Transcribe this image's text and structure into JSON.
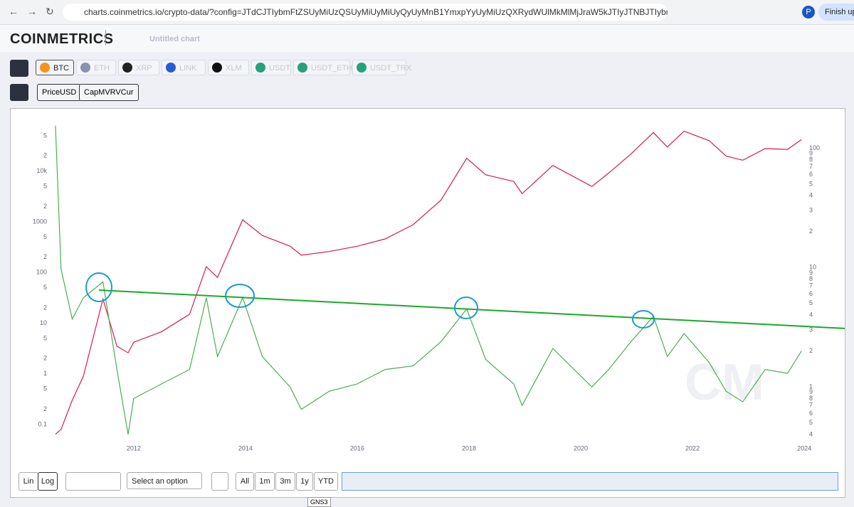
{
  "browser": {
    "url": "charts.coinmetrics.io/crypto-data/?config=JTdCJTIybmFtZSUyMiUzQSUyMiUyMiUyQyUyMnB1YmxpYyUyMiUzQXRydWUlMkMlMjJraW5kJTIyJTNBJTIybmMlMjIlMkMlMjJjb250Z...",
    "profile": "P",
    "button": "Finish upd"
  },
  "header": {
    "logo": "COINMETRICS",
    "chart_title": "Untitled chart"
  },
  "assets": [
    "BTC",
    "ETH",
    "XRP",
    "LINK",
    "XLM",
    "USDT",
    "USDT_ETH",
    "USDT_TRX"
  ],
  "controls": {
    "scales": [
      "Lin",
      "Log"
    ],
    "select": "Select an option",
    "ranges": [
      "All",
      "1m",
      "3m",
      "1y",
      "YTD"
    ],
    "tooltip": "GNS3"
  },
  "watermark": "CM",
  "chart_data": {
    "type": "line",
    "log_scale": true,
    "x": [
      2010.6,
      2010.7,
      2010.9,
      2011.1,
      2011.45,
      2011.7,
      2011.9,
      2012.0,
      2012.5,
      2013.0,
      2013.3,
      2013.5,
      2013.95,
      2014.3,
      2014.8,
      2015.0,
      2015.5,
      2016.0,
      2016.5,
      2017.0,
      2017.5,
      2017.96,
      2018.3,
      2018.8,
      2018.95,
      2019.5,
      2020.2,
      2020.5,
      2020.9,
      2021.3,
      2021.55,
      2021.85,
      2022.3,
      2022.6,
      2022.9,
      2023.3,
      2023.7,
      2023.95
    ],
    "series": [
      {
        "name": "PriceUSD",
        "color": "#d81b4f",
        "axis": "y",
        "values": [
          0.064,
          0.08,
          0.3,
          0.9,
          30,
          3.5,
          2.6,
          4.2,
          6.8,
          15,
          130,
          80,
          1100,
          540,
          330,
          220,
          260,
          330,
          460,
          880,
          2700,
          18000,
          8500,
          6300,
          3600,
          13000,
          5000,
          9200,
          22000,
          58000,
          30000,
          62000,
          40000,
          20000,
          16500,
          28000,
          27000,
          42000
        ]
      },
      {
        "name": "CapMVRVCur",
        "color": "#4caf50",
        "axis": "y2",
        "values": [
          155,
          9.7,
          3.7,
          5.6,
          7.6,
          1.4,
          0.4,
          0.8,
          1.06,
          1.4,
          5.6,
          1.8,
          5.6,
          1.8,
          1.0,
          0.65,
          0.92,
          1.06,
          1.4,
          1.5,
          2.4,
          4.5,
          1.7,
          1.06,
          0.7,
          2.1,
          1.0,
          1.4,
          2.4,
          3.9,
          1.8,
          2.8,
          1.6,
          0.92,
          0.75,
          1.4,
          1.3,
          2.0
        ]
      }
    ],
    "xlim": [
      2010.55,
      2024.75
    ],
    "xticks": [
      2012,
      2014,
      2016,
      2018,
      2020,
      2022,
      2024
    ],
    "ylim": [
      0.043,
      132000
    ],
    "yticks": [
      0.1,
      {
        "value": 0.2,
        "label": "2"
      },
      {
        "value": 0.5,
        "label": "5"
      },
      1,
      2,
      5,
      10,
      {
        "value": 20,
        "label": "2"
      },
      {
        "value": 50,
        "label": "5"
      },
      100,
      {
        "value": 200,
        "label": "2"
      },
      {
        "value": 500,
        "label": "5"
      },
      1000,
      {
        "value": 2000,
        "label": "2"
      },
      {
        "value": 5000,
        "label": "5"
      },
      {
        "value": 10000,
        "label": "10k"
      },
      {
        "value": 20000,
        "label": "2"
      },
      {
        "value": 50000,
        "label": "5"
      }
    ],
    "y2lim": [
      0.339,
      192
    ],
    "y2ticks": [
      {
        "value": 0.4,
        "label": "4"
      },
      {
        "value": 0.5,
        "label": "5"
      },
      {
        "value": 0.6,
        "label": "6"
      },
      {
        "value": 0.7,
        "label": "7"
      },
      {
        "value": 0.8,
        "label": "8"
      },
      {
        "value": 0.9,
        "label": "9"
      },
      1,
      2,
      3,
      4,
      5,
      6,
      7,
      8,
      9,
      10,
      {
        "value": 20,
        "label": "2"
      },
      {
        "value": 30,
        "label": "3"
      },
      {
        "value": 40,
        "label": "4"
      },
      {
        "value": 50,
        "label": "5"
      },
      {
        "value": 60,
        "label": "6"
      },
      {
        "value": 70,
        "label": "7"
      },
      {
        "value": 80,
        "label": "8"
      },
      {
        "value": 90,
        "label": "9"
      },
      100
    ]
  }
}
